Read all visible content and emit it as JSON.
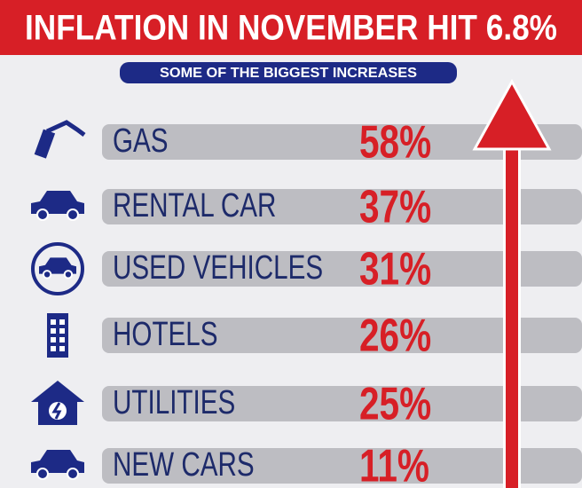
{
  "header": {
    "title": "INFLATION IN NOVEMBER HIT 6.8%",
    "subtitle": "SOME OF THE BIGGEST INCREASES"
  },
  "items": [
    {
      "label": "GAS",
      "value": "58%"
    },
    {
      "label": "RENTAL CAR",
      "value": "37%"
    },
    {
      "label": "USED VEHICLES",
      "value": "31%"
    },
    {
      "label": "HOTELS",
      "value": "26%"
    },
    {
      "label": "UTILITIES",
      "value": "25%"
    },
    {
      "label": "NEW CARS",
      "value": "11%"
    }
  ]
}
